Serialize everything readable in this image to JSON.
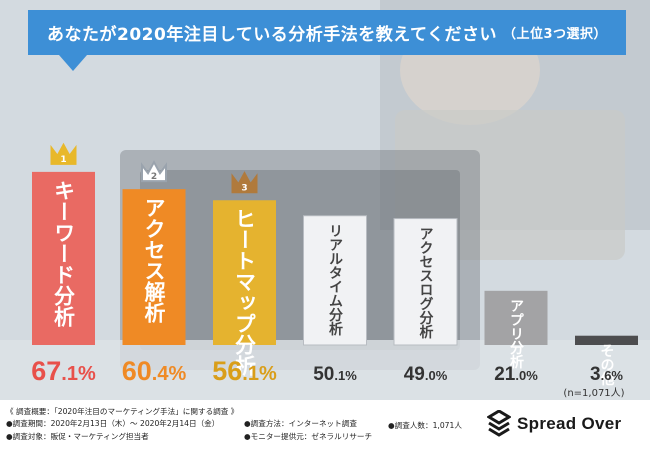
{
  "title": {
    "main": "あなたが2020年注目している分析手法を教えてください",
    "sub": "（上位3つ選択）"
  },
  "chart_data": {
    "type": "bar",
    "categories": [
      "キーワード分析",
      "アクセス解析",
      "ヒートマップ分析",
      "リアルタイム分析",
      "アクセスログ分析",
      "アプリ分析",
      "その他"
    ],
    "values": [
      67.1,
      60.4,
      56.1,
      50.1,
      49.0,
      21.0,
      3.6
    ],
    "value_labels": [
      "67.1%",
      "60.4%",
      "56.1%",
      "50.1%",
      "49.0%",
      "21.0%",
      "3.6%"
    ],
    "ranks": [
      "1",
      "2",
      "3"
    ],
    "n_note": "(n=1,071人)",
    "colors": {
      "bars": [
        "#e96a63",
        "#ef8a25",
        "#e5b32f",
        "#f1f2f4",
        "#f1f2f4",
        "#a3a3a5",
        "#4d4d4f"
      ],
      "bar_text": [
        "#ffffff",
        "#ffffff",
        "#ffffff",
        "#444444",
        "#444444",
        "#ffffff",
        "#ffffff"
      ],
      "value_text": [
        "#e8504a",
        "#ef8a25",
        "#d99e1a",
        "#333333",
        "#333333",
        "#333333",
        "#333333"
      ],
      "crowns": [
        "#e8b82a",
        "#b9c0c8",
        "#b07a3c"
      ]
    }
  },
  "footer": {
    "overview": "《 調査概要：「2020年注目のマーケティング手法」に関する調査 》",
    "period": "●調査期間：2020年2月13日（木）～ 2020年2月14日（金）",
    "method": "●調査方法：インターネット調査",
    "people": "●調査人数：1,071人",
    "target": "●調査対象：販促・マーケティング担当者",
    "provider": "●モニター提供元：ゼネラルリサーチ"
  },
  "brand": {
    "name": "Spread Over",
    "logo_icon": "spread-over-logo-icon"
  }
}
